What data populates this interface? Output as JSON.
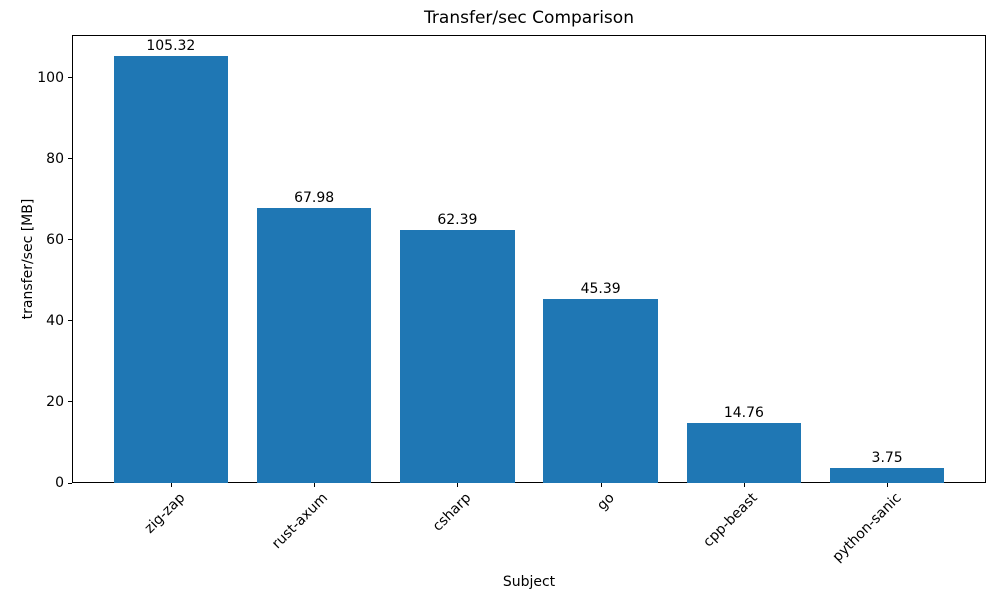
{
  "chart_data": {
    "type": "bar",
    "title": "Transfer/sec Comparison",
    "xlabel": "Subject",
    "ylabel": "transfer/sec [MB]",
    "categories": [
      "zig-zap",
      "rust-axum",
      "csharp",
      "go",
      "cpp-beast",
      "python-sanic"
    ],
    "values": [
      105.32,
      67.98,
      62.39,
      45.39,
      14.76,
      3.75
    ],
    "bar_labels": [
      "105.32",
      "67.98",
      "62.39",
      "45.39",
      "14.76",
      "3.75"
    ],
    "series_name": "transfer/sec",
    "yticks": [
      0,
      20,
      40,
      60,
      80,
      100
    ],
    "ytick_labels": [
      "0",
      "20",
      "40",
      "60",
      "80",
      "100"
    ],
    "ylim": [
      0,
      110.59
    ],
    "xlim": [
      -0.69,
      5.69
    ],
    "bar_width_ratio": 0.8,
    "bar_color": "#1f77b4",
    "axis_color": "#000000",
    "background_color": "#ffffff",
    "grid": false,
    "legend": null,
    "x_tick_label_rotation_deg": 45
  }
}
